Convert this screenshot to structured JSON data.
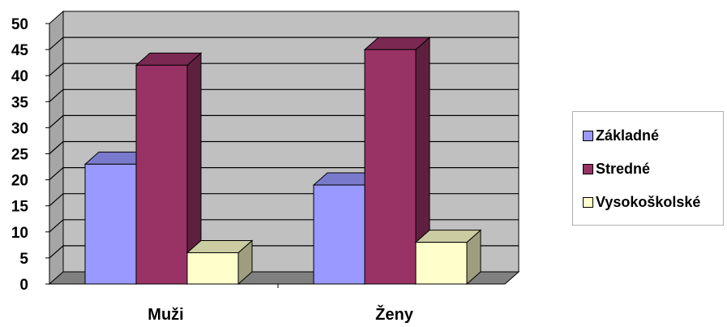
{
  "chart_data": {
    "type": "bar",
    "categories": [
      "Muži",
      "Ženy"
    ],
    "series": [
      {
        "name": "Základné",
        "values": [
          23,
          19
        ],
        "color": "#9999ff"
      },
      {
        "name": "Stredné",
        "values": [
          42,
          45
        ],
        "color": "#993366"
      },
      {
        "name": "Vysokoškolské",
        "values": [
          6,
          8
        ],
        "color": "#ffffcc"
      }
    ],
    "ylim": [
      0,
      50
    ],
    "yticks": [
      "0",
      "5",
      "10",
      "15",
      "20",
      "25",
      "30",
      "35",
      "40",
      "45",
      "50"
    ],
    "grid": true,
    "legend_position": "right",
    "style": "3d-column",
    "wall_color": "#c0c0c0",
    "floor_color": "#808080"
  }
}
